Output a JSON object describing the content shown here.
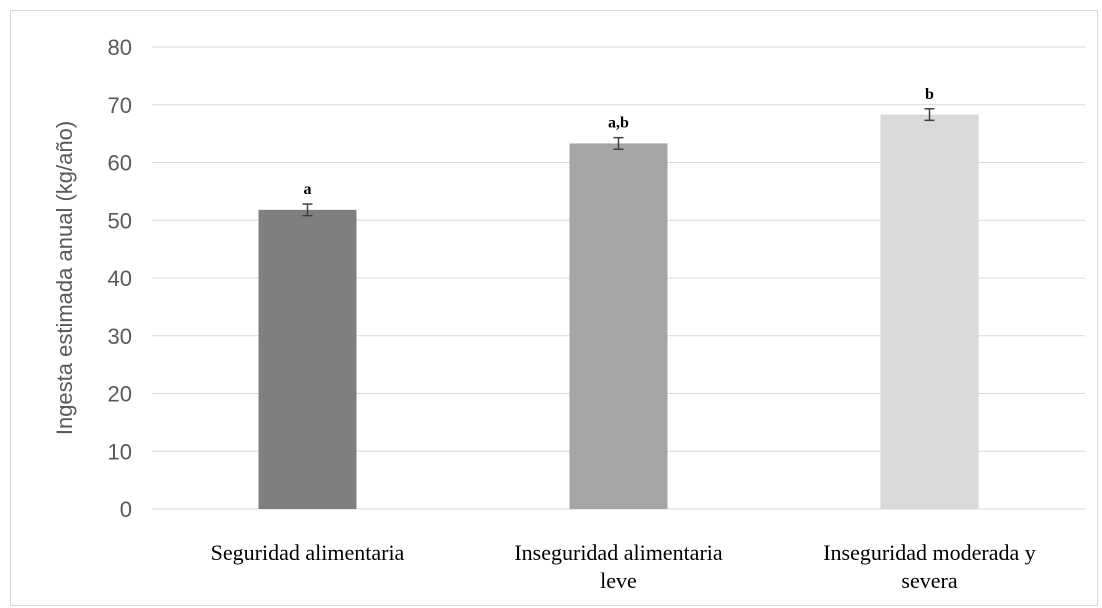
{
  "chart_data": {
    "type": "bar",
    "title": "",
    "xlabel": "",
    "ylabel": "Ingesta estimada anual (kg/año)",
    "ylim": [
      0,
      80
    ],
    "yticks": [
      0,
      10,
      20,
      30,
      40,
      50,
      60,
      70,
      80
    ],
    "grid": true,
    "categories": [
      [
        "Seguridad alimentaria"
      ],
      [
        "Inseguridad alimentaria",
        "leve"
      ],
      [
        "Inseguridad moderada y",
        "severa"
      ]
    ],
    "values": [
      51.8,
      63.3,
      68.3
    ],
    "error": [
      1.0,
      1.0,
      1.0
    ],
    "significance_labels": [
      "a",
      "a,b",
      "b"
    ],
    "colors": [
      "#7f7f7f",
      "#a5a5a5",
      "#d9d9d9"
    ]
  }
}
